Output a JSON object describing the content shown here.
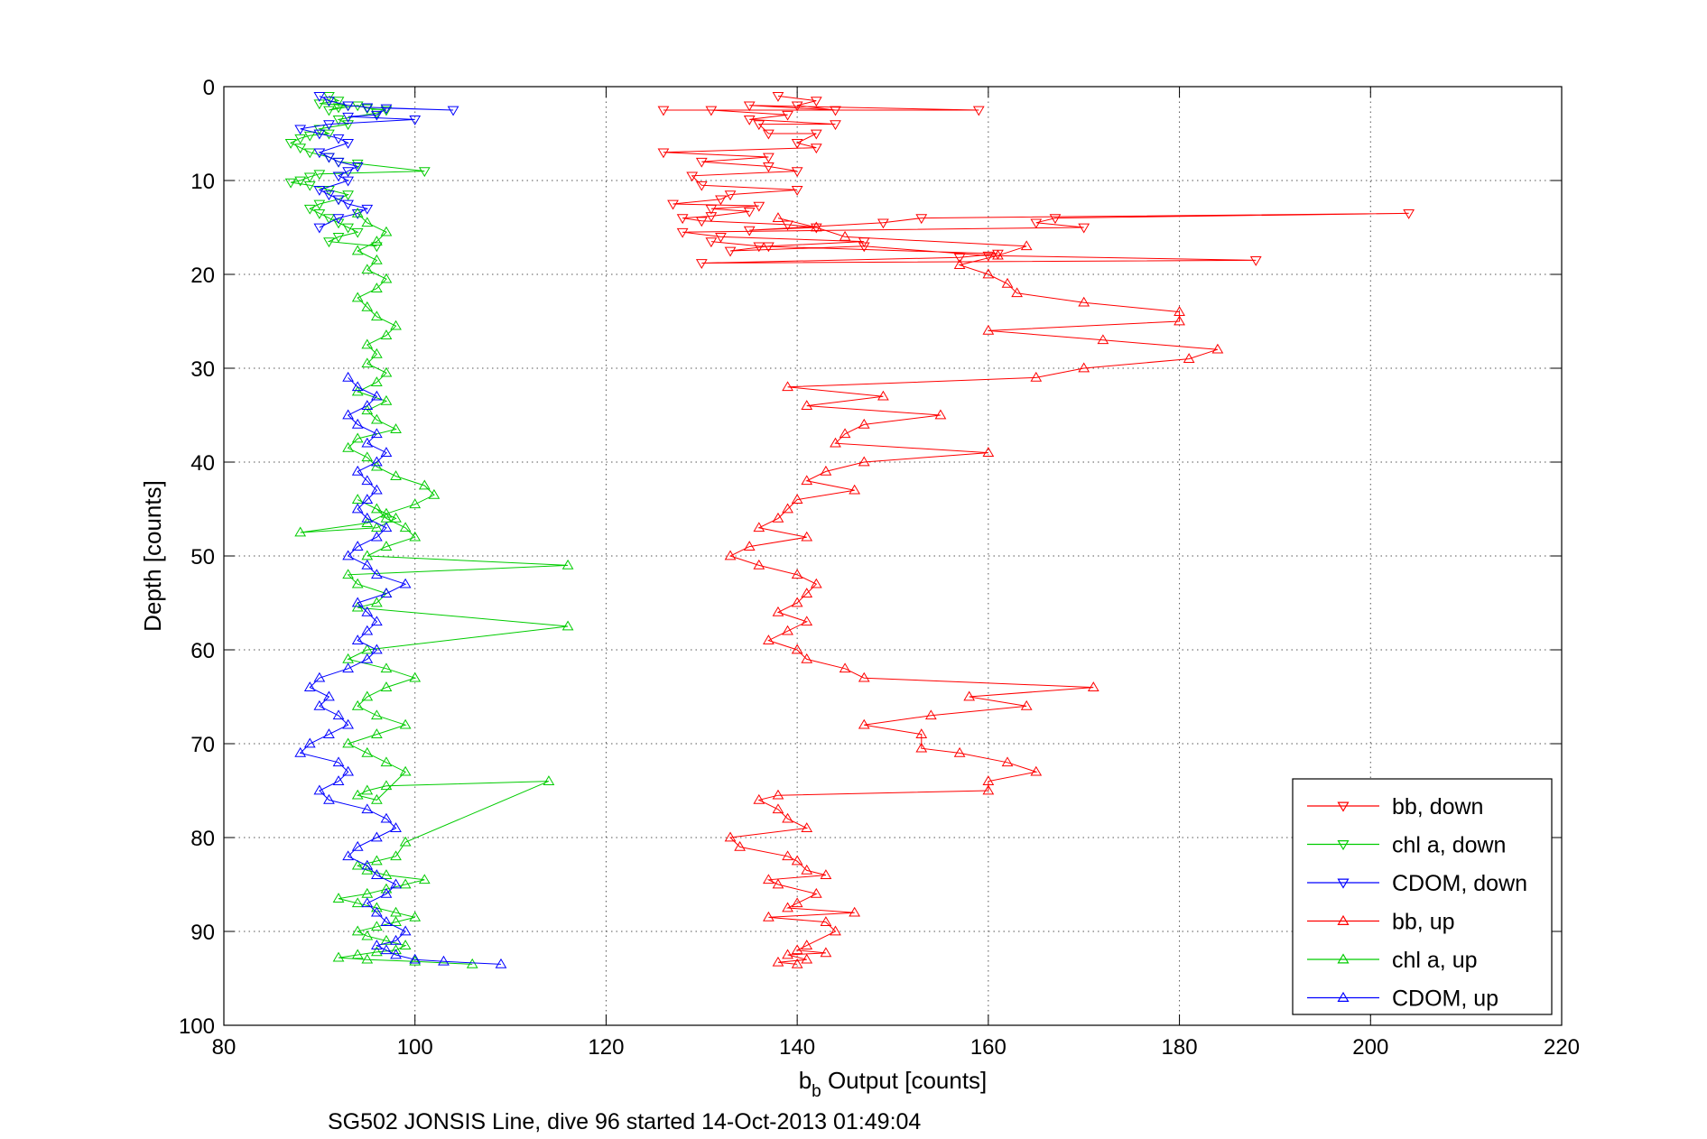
{
  "chart_data": {
    "type": "line",
    "xlabel": {
      "main": "b",
      "sub": "b",
      "rest": " Output [counts]"
    },
    "ylabel": "Depth [counts]",
    "caption": "SG502 JONSIS Line, dive 96 started 14-Oct-2013 01:49:04",
    "xlim": [
      80,
      220
    ],
    "ylim": [
      0,
      100
    ],
    "y_reversed": true,
    "x_ticks": [
      80,
      100,
      120,
      140,
      160,
      180,
      200,
      220
    ],
    "y_ticks": [
      0,
      10,
      20,
      30,
      40,
      50,
      60,
      70,
      80,
      90,
      100
    ],
    "grid": true,
    "legend_position": "bottom-right",
    "series": [
      {
        "name": "bb, down",
        "color": "#ff0000",
        "marker": "triangle-down",
        "x": [
          138,
          142,
          140,
          144,
          135,
          159,
          126,
          131,
          139,
          135,
          144,
          136,
          137,
          142,
          140,
          142,
          126,
          137,
          130,
          137,
          140,
          129,
          130,
          140,
          133,
          132,
          127,
          136,
          131,
          135,
          131,
          128,
          130,
          139,
          142,
          135,
          149,
          153,
          204,
          167,
          165,
          170,
          128,
          132,
          147,
          137,
          133,
          147,
          160,
          188,
          130,
          157,
          161,
          136,
          131
        ],
        "y": [
          1,
          1.5,
          2,
          2.5,
          2,
          2.5,
          2.5,
          2.5,
          3,
          3.5,
          4,
          4,
          5,
          5,
          6,
          6.5,
          7,
          7.5,
          8,
          8.5,
          9,
          9.5,
          10.5,
          11,
          11.5,
          12,
          12.5,
          12.7,
          13,
          13.3,
          13.8,
          14,
          14.3,
          14.7,
          15,
          15.3,
          14.5,
          14,
          13.5,
          14,
          14.5,
          15,
          15.5,
          16,
          16.5,
          17,
          17.5,
          17,
          18,
          18.5,
          18.8,
          18.2,
          17.8,
          17,
          16.5
        ]
      },
      {
        "name": "chl a, down",
        "color": "#00cc00",
        "marker": "triangle-down",
        "x": [
          91,
          92,
          90,
          93,
          92,
          91,
          94,
          95,
          97,
          96,
          92,
          93,
          90,
          91,
          89,
          88,
          87,
          88,
          89,
          91,
          92,
          94,
          101,
          90,
          89,
          88,
          87,
          89,
          91,
          93,
          92,
          90,
          89,
          90,
          91,
          92,
          93,
          94,
          92,
          91,
          96
        ],
        "y": [
          1,
          1.5,
          1.8,
          2,
          2.2,
          2.5,
          2,
          2.3,
          2.5,
          2.8,
          3.5,
          4,
          4.5,
          5,
          5.2,
          5.5,
          6,
          6.5,
          7,
          7.5,
          8,
          8.2,
          9,
          9.3,
          9.6,
          10,
          10.2,
          10.5,
          11,
          11.5,
          12,
          12.5,
          13,
          13.5,
          14,
          14.5,
          15,
          15.5,
          16,
          16.5,
          17
        ]
      },
      {
        "name": "CDOM, down",
        "color": "#0000ff",
        "marker": "triangle-down",
        "x": [
          90,
          91,
          93,
          95,
          104,
          97,
          96,
          93,
          100,
          91,
          88,
          90,
          92,
          93,
          90,
          91,
          92,
          94,
          93,
          92,
          93,
          90,
          91,
          92,
          93,
          95,
          94,
          92,
          90
        ],
        "y": [
          1,
          1.5,
          2,
          2.2,
          2.5,
          2.3,
          3,
          3.2,
          3.5,
          4,
          4.5,
          5,
          5.5,
          6,
          7,
          7.5,
          8,
          8.5,
          9,
          9.5,
          10,
          11,
          11.5,
          12,
          12.5,
          13,
          13.5,
          14,
          15
        ]
      },
      {
        "name": "bb, up",
        "color": "#ff0000",
        "marker": "triangle-up",
        "x": [
          140,
          138,
          141,
          139,
          143,
          140,
          141,
          144,
          143,
          137,
          146,
          139,
          140,
          142,
          138,
          137,
          143,
          141,
          140,
          139,
          134,
          133,
          141,
          139,
          138,
          136,
          138,
          160,
          160,
          165,
          162,
          157,
          153,
          153,
          147,
          154,
          164,
          158,
          171,
          147,
          145,
          141,
          140,
          137,
          139,
          141,
          138,
          140,
          141,
          142,
          140,
          136,
          133,
          135,
          141,
          136,
          138,
          139,
          140,
          146,
          141,
          143,
          147,
          160,
          144,
          145,
          147,
          155,
          141,
          149,
          139,
          165,
          170,
          181,
          184,
          172,
          160,
          180,
          180,
          170,
          163,
          162,
          160,
          157,
          161,
          164,
          145,
          142,
          138
        ],
        "y": [
          93.5,
          93.3,
          93,
          92.5,
          92.3,
          92,
          91.5,
          90,
          89,
          88.5,
          88,
          87.5,
          87,
          86,
          85,
          84.5,
          84,
          83.5,
          82.5,
          82,
          81,
          80,
          79,
          78,
          77,
          76,
          75.5,
          75,
          74,
          73,
          72,
          71,
          70.5,
          69,
          68,
          67,
          66,
          65,
          64,
          63,
          62,
          61,
          60,
          59,
          58,
          57,
          56,
          55,
          54,
          53,
          52,
          51,
          50,
          49,
          48,
          47,
          46,
          45,
          44,
          43,
          42,
          41,
          40,
          39,
          38,
          37,
          36,
          35,
          34,
          33,
          32,
          31,
          30,
          29,
          28,
          27,
          26,
          25,
          24,
          23,
          22,
          21,
          20,
          19,
          18,
          17,
          16,
          15,
          14
        ]
      },
      {
        "name": "chl a, up",
        "color": "#00cc00",
        "marker": "triangle-up",
        "x": [
          106,
          100,
          95,
          92,
          94,
          96,
          98,
          99,
          97,
          95,
          94,
          96,
          98,
          100,
          98,
          96,
          94,
          92,
          95,
          97,
          99,
          101,
          97,
          95,
          94,
          96,
          98,
          99,
          114,
          97,
          95,
          94,
          96,
          99,
          97,
          95,
          93,
          96,
          99,
          96,
          94,
          95,
          97,
          100,
          97,
          93,
          95,
          116,
          94,
          96,
          97,
          94,
          93,
          116,
          95,
          97,
          100,
          99,
          97,
          96,
          94,
          98,
          96,
          88,
          95,
          97,
          100,
          102,
          101,
          98,
          96,
          95,
          93,
          94,
          98,
          96,
          95,
          97,
          94,
          96,
          97,
          95,
          96,
          95,
          97,
          98,
          96,
          95,
          94,
          96,
          97,
          95,
          96,
          94,
          96,
          97,
          95,
          94
        ],
        "y": [
          93.5,
          93.2,
          93,
          92.8,
          92.5,
          92.2,
          92,
          91.5,
          91,
          90.5,
          90,
          89.5,
          89,
          88.5,
          88,
          87.5,
          87,
          86.5,
          86,
          85.5,
          85,
          84.5,
          84,
          83.5,
          83,
          82.5,
          82,
          80.5,
          74,
          74.5,
          75,
          75.5,
          76,
          73,
          72,
          71,
          70,
          69,
          68,
          67,
          66,
          65,
          64,
          63,
          62,
          61,
          60,
          57.5,
          55.5,
          55,
          54,
          53,
          52,
          51,
          50,
          49,
          48,
          47,
          46,
          45,
          44,
          46,
          47,
          47.5,
          46.5,
          45.5,
          44.5,
          43.5,
          42.5,
          41.5,
          40.5,
          39.5,
          38.5,
          37.5,
          36.5,
          35.5,
          34.5,
          33.5,
          32.5,
          31.5,
          30.5,
          29.5,
          28.5,
          27.5,
          26.5,
          25.5,
          24.5,
          23.5,
          22.5,
          21.5,
          20.5,
          19.5,
          18.5,
          17.5,
          16.5,
          15.5,
          14.5,
          13.5
        ]
      },
      {
        "name": "CDOM, up",
        "color": "#0000ff",
        "marker": "triangle-up",
        "x": [
          109,
          103,
          100,
          98,
          97,
          96,
          98,
          99,
          97,
          96,
          95,
          97,
          98,
          96,
          95,
          93,
          94,
          96,
          98,
          97,
          95,
          91,
          90,
          92,
          93,
          92,
          88,
          89,
          91,
          93,
          92,
          90,
          91,
          89,
          90,
          93,
          95,
          96,
          94,
          95,
          96,
          95,
          94,
          97,
          99,
          96,
          95,
          93,
          94,
          96,
          97,
          95,
          94,
          95,
          96,
          95,
          94,
          96,
          97,
          95,
          96,
          94,
          93,
          95,
          96,
          94,
          93
        ],
        "y": [
          93.5,
          93.2,
          93,
          92.5,
          92,
          91.5,
          91,
          90,
          89,
          88,
          87,
          86,
          85,
          84,
          83,
          82,
          81,
          80,
          79,
          78,
          77,
          76,
          75,
          74,
          73,
          72,
          71,
          70,
          69,
          68,
          67,
          66,
          65,
          64,
          63,
          62,
          61,
          60,
          59,
          58,
          57,
          56,
          55,
          54,
          53,
          52,
          51,
          50,
          49,
          48,
          47,
          46,
          45,
          44,
          43,
          42,
          41,
          40,
          39,
          38,
          37,
          36,
          35,
          34,
          33,
          32,
          31
        ]
      }
    ]
  }
}
